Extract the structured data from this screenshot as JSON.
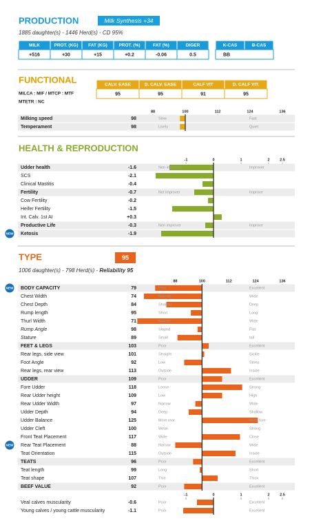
{
  "production": {
    "title": "PRODUCTION",
    "badge": "Milk Synthesis +34",
    "subtitle": "1885 daughter(s) - 1446 Herd(s) - CD 95%",
    "table": {
      "headers": [
        "MILK",
        "PROT. (KG)",
        "FAT (KG)",
        "PROT. (%)",
        "FAT (%)",
        "DIGER"
      ],
      "values": [
        "+516",
        "+30",
        "+15",
        "+0.2",
        "-0.06",
        "0.5"
      ]
    },
    "casein": {
      "headers": [
        "K-CAS",
        "B-CAS"
      ],
      "value": "BB"
    }
  },
  "functional": {
    "title": "FUNCTIONAL",
    "notes": [
      "MILCA : MIF / MTCP : MTF",
      "MTETR : NC"
    ],
    "table": {
      "headers": [
        "CALV. EASE",
        "D. CALV. EASE",
        "CALF VIT",
        "D. CALF VIT."
      ],
      "values": [
        95,
        95,
        91,
        95
      ]
    },
    "scale": {
      "lim": [
        88,
        136
      ],
      "ticks": [
        88,
        100,
        112,
        124,
        136
      ]
    },
    "rows": [
      {
        "label": "Milking speed",
        "value": 98,
        "low": "Slow",
        "high": "Fast",
        "bold": true
      },
      {
        "label": "Temperament",
        "value": 98,
        "low": "Lively",
        "high": "Quiet",
        "bold": true
      }
    ]
  },
  "health": {
    "title": "HEALTH & REPRODUCTION",
    "scale": {
      "lim": [
        -2.2,
        2.5
      ],
      "ticks": [
        -1,
        0,
        1,
        2,
        2.5
      ]
    },
    "rows": [
      {
        "label": "Udder health",
        "value": -1.6,
        "low": "Non improver",
        "high": "Improver",
        "bold": true
      },
      {
        "label": "SCS",
        "value": -2.1
      },
      {
        "label": "Clinical Mastitis",
        "value": -0.4
      },
      {
        "label": "Fertility",
        "value": -0.7,
        "low": "Not improver",
        "high": "Improve",
        "bold": true
      },
      {
        "label": "Cow Fertility",
        "value": -0.2
      },
      {
        "label": "Heifer Fertility",
        "value": -1.5
      },
      {
        "label": "Int. Calv. 1st AI",
        "value": 0.3,
        "value_label": "+0.3"
      },
      {
        "label": "Productive Life",
        "value": -0.3,
        "low": "Non improver",
        "high": "Improve",
        "bold": true
      },
      {
        "label": "Ketosis",
        "value": -1.9,
        "badge": "NEW",
        "bold": true
      }
    ]
  },
  "type": {
    "title": "TYPE",
    "badge": 95,
    "subtitle": "1006 daughter(s) - 798 Herd(s) - ",
    "reliability": "Reliability 95",
    "scale": {
      "lim": [
        78,
        136
      ],
      "ticks": [
        88,
        100,
        112,
        124,
        136
      ]
    },
    "rows": [
      {
        "label": "BODY CAPACITY",
        "value": 79,
        "low": "Poor",
        "high": "Excellent",
        "bold": true,
        "badge": "NEW"
      },
      {
        "label": "Chest Width",
        "value": 74,
        "low": "Narrow",
        "high": "Wide"
      },
      {
        "label": "Chest Depth",
        "value": 84,
        "low": "Shallow",
        "high": "Deep"
      },
      {
        "label": "Rump length",
        "value": 95,
        "low": "Short",
        "high": "Long"
      },
      {
        "label": "Thurl Width",
        "value": 71,
        "low": "Narrow",
        "high": "Wide"
      },
      {
        "label": "Rump Angle",
        "value": 98,
        "low": "Sloped",
        "high": "Flat",
        "italic": true
      },
      {
        "label": "Stature",
        "value": 89,
        "low": "Small",
        "high": "tall",
        "italic": true
      },
      {
        "label": "FEET & LEGS",
        "value": 103,
        "low": "Poor",
        "high": "Excellent",
        "bold": true
      },
      {
        "label": "Rear legs, side view",
        "value": 101,
        "low": "Straight",
        "high": "Sickle"
      },
      {
        "label": "Foot Angle",
        "value": 92,
        "low": "Low",
        "high": "Steep"
      },
      {
        "label": "Rear legs, rear view",
        "value": 113,
        "low": "Outside",
        "high": "Inside"
      },
      {
        "label": "UDDER",
        "value": 109,
        "low": "Poor",
        "high": "Excellent",
        "bold": true
      },
      {
        "label": "Fore Udder",
        "value": 118,
        "low": "Loose",
        "high": "Strong"
      },
      {
        "label": "Rear Udder height",
        "value": 109,
        "low": "Low",
        "high": "High"
      },
      {
        "label": "Rear Udder Width",
        "value": 97,
        "low": "Narrow",
        "high": "Wide"
      },
      {
        "label": "Udder Depth",
        "value": 94,
        "low": "Deep",
        "high": "Shallow"
      },
      {
        "label": "Udder Balance",
        "value": 125,
        "low": "More rear",
        "high": "More fore"
      },
      {
        "label": "Udder Cleft",
        "value": 100,
        "low": "Weak",
        "high": "Strong"
      },
      {
        "label": "Front Teat Placement",
        "value": 117,
        "low": "Wide",
        "high": "Close"
      },
      {
        "label": "Rear Teat Placement",
        "value": 88,
        "low": "Narrow",
        "high": "Wide",
        "badge": "NEW"
      },
      {
        "label": "Teat Orientation",
        "value": 115,
        "low": "Outside",
        "high": "Inside"
      },
      {
        "label": "TEATS",
        "value": 96,
        "low": "Poor",
        "high": "Excellent",
        "bold": true
      },
      {
        "label": "Teat length",
        "value": 99,
        "low": "Long",
        "high": "Short"
      },
      {
        "label": "Teat shape",
        "value": 107,
        "low": "Thin",
        "high": "Thick"
      },
      {
        "label": "BEEF VALUE",
        "value": 92,
        "low": "Poor",
        "high": "Excellent",
        "bold": true
      }
    ]
  },
  "beef": {
    "scale": {
      "lim": [
        -2.2,
        2.5
      ],
      "ticks": [
        -1,
        0,
        1,
        2,
        2.5
      ]
    },
    "rows": [
      {
        "label": "Veal calves muscularity",
        "value": -0.6,
        "low": "Poor",
        "high": "Excellent"
      },
      {
        "label": "Young calves / young cattle muscularity",
        "value": -1.1,
        "low": "Poor",
        "high": "Excellent"
      }
    ]
  }
}
